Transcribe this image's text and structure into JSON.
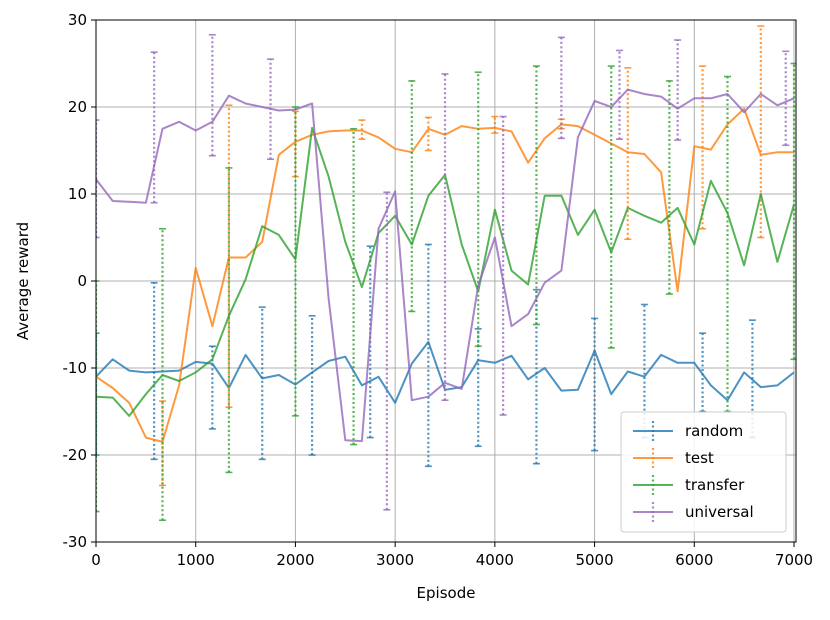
{
  "chart_data": {
    "type": "line",
    "xlabel": "Episode",
    "ylabel": "Average reward",
    "xlim": [
      0,
      7020
    ],
    "ylim": [
      -30,
      30
    ],
    "xticks": [
      0,
      1000,
      2000,
      3000,
      4000,
      5000,
      6000,
      7000
    ],
    "yticks": [
      -30,
      -20,
      -10,
      0,
      10,
      20,
      30
    ],
    "grid": true,
    "legend": "lower right",
    "x": [
      0,
      167,
      333,
      500,
      667,
      833,
      1000,
      1167,
      1333,
      1500,
      1667,
      1833,
      2000,
      2167,
      2333,
      2500,
      2667,
      2833,
      3000,
      3167,
      3333,
      3500,
      3667,
      3833,
      4000,
      4167,
      4333,
      4500,
      4667,
      4833,
      5000,
      5167,
      5333,
      5500,
      5667,
      5833,
      6000,
      6167,
      6333,
      6500,
      6667,
      6833,
      7000
    ],
    "series": [
      {
        "name": "random",
        "color": "#1f77b4",
        "values": [
          -11,
          -9,
          -10.3,
          -10.5,
          -10.4,
          -10.3,
          -9.3,
          -9.5,
          -12.3,
          -8.5,
          -11.2,
          -10.8,
          -11.9,
          -10.5,
          -9.2,
          -8.7,
          -12,
          -11,
          -14,
          -9.5,
          -7,
          -12.5,
          -12.2,
          -9.1,
          -9.4,
          -8.6,
          -11.3,
          -10,
          -12.6,
          -12.5,
          -8,
          -13,
          -10.4,
          -11,
          -8.5,
          -9.4,
          -9.4,
          -12,
          -13.7,
          -10.5,
          -12.2,
          -12,
          -10.5
        ],
        "error_bars": [
          {
            "x": 0,
            "low": -20,
            "high": -6
          },
          {
            "x": 583,
            "low": -20.5,
            "high": -0.2
          },
          {
            "x": 1167,
            "low": -17,
            "high": -7.5
          },
          {
            "x": 1667,
            "low": -20.5,
            "high": -3
          },
          {
            "x": 2167,
            "low": -20,
            "high": -4
          },
          {
            "x": 2750,
            "low": -18,
            "high": 4
          },
          {
            "x": 3333,
            "low": -21.3,
            "high": 4.2
          },
          {
            "x": 3833,
            "low": -19,
            "high": -5.5
          },
          {
            "x": 4417,
            "low": -21,
            "high": -1
          },
          {
            "x": 5000,
            "low": -19.5,
            "high": -4.3
          },
          {
            "x": 5500,
            "low": -18,
            "high": -2.7
          },
          {
            "x": 6083,
            "low": -15,
            "high": -6
          },
          {
            "x": 6583,
            "low": -18,
            "high": -4.5
          }
        ]
      },
      {
        "name": "test",
        "color": "#ff7f0e",
        "values": [
          -11,
          -12.3,
          -14,
          -18,
          -18.5,
          -12,
          1.5,
          -5.2,
          2.7,
          2.7,
          4.5,
          14.5,
          16,
          16.8,
          17.2,
          17.3,
          17.3,
          16.5,
          15.2,
          14.8,
          17.5,
          16.8,
          17.8,
          17.5,
          17.6,
          17.2,
          13.6,
          16.4,
          18,
          17.8,
          16.8,
          15.8,
          14.8,
          14.6,
          12.5,
          -1.2,
          15.5,
          15.1,
          18,
          19.8,
          14.5,
          14.8,
          14.8
        ],
        "error_bars": [
          {
            "x": 667,
            "low": -23.5,
            "high": -13.8
          },
          {
            "x": 1333,
            "low": -14.5,
            "high": 20.2
          },
          {
            "x": 2000,
            "low": 12,
            "high": 19.5
          },
          {
            "x": 2667,
            "low": 16.3,
            "high": 18.5
          },
          {
            "x": 3333,
            "low": 15,
            "high": 18.8
          },
          {
            "x": 4000,
            "low": 17,
            "high": 18.9
          },
          {
            "x": 4667,
            "low": 17.5,
            "high": 18.6
          },
          {
            "x": 5333,
            "low": 4.8,
            "high": 24.5
          },
          {
            "x": 6083,
            "low": 6,
            "high": 24.7
          },
          {
            "x": 6667,
            "low": 5,
            "high": 29.3
          }
        ]
      },
      {
        "name": "transfer",
        "color": "#2ca02c",
        "values": [
          -13.3,
          -13.4,
          -15.5,
          -13,
          -10.8,
          -11.5,
          -10.5,
          -9,
          -4,
          0.2,
          6.3,
          5.3,
          2.5,
          17.6,
          12,
          4.5,
          -0.7,
          5.5,
          7.5,
          4.2,
          9.8,
          12.2,
          4.2,
          -1.2,
          8.2,
          1.2,
          -0.4,
          9.8,
          9.8,
          5.3,
          8.2,
          3.3,
          8.4,
          7.5,
          6.7,
          8.4,
          4.2,
          11.5,
          7.8,
          1.8,
          10,
          2.2,
          8.8
        ],
        "error_bars": [
          {
            "x": 0,
            "low": -26.5,
            "high": 0
          },
          {
            "x": 667,
            "low": -27.5,
            "high": 6
          },
          {
            "x": 1333,
            "low": -22,
            "high": 13
          },
          {
            "x": 2000,
            "low": -15.5,
            "high": 20
          },
          {
            "x": 2583,
            "low": -18.8,
            "high": 17.5
          },
          {
            "x": 3167,
            "low": -3.5,
            "high": 23
          },
          {
            "x": 3833,
            "low": -7.5,
            "high": 24
          },
          {
            "x": 4417,
            "low": -5,
            "high": 24.7
          },
          {
            "x": 5167,
            "low": -7.7,
            "high": 24.7
          },
          {
            "x": 5750,
            "low": -1.5,
            "high": 23
          },
          {
            "x": 6333,
            "low": -15,
            "high": 23.5
          },
          {
            "x": 7000,
            "low": -9,
            "high": 25
          }
        ]
      },
      {
        "name": "universal",
        "color": "#9467bd",
        "values": [
          11.7,
          9.2,
          9.1,
          9,
          17.5,
          18.3,
          17.3,
          18.3,
          21.3,
          20.4,
          20,
          19.6,
          19.7,
          20.4,
          -2,
          -18.3,
          -18.4,
          6,
          10.3,
          -13.7,
          -13.3,
          -11.7,
          -12.4,
          -0.5,
          5,
          -5.2,
          -3.8,
          -0.2,
          1.2,
          16.5,
          20.7,
          20,
          22,
          21.5,
          21.2,
          19.8,
          21,
          21,
          21.5,
          19.4,
          21.5,
          20.2,
          21
        ],
        "error_bars": [
          {
            "x": 0,
            "low": 5,
            "high": 18.5
          },
          {
            "x": 583,
            "low": 9,
            "high": 26.3
          },
          {
            "x": 1167,
            "low": 14.4,
            "high": 28.3
          },
          {
            "x": 1750,
            "low": 14,
            "high": 25.5
          },
          {
            "x": 2917,
            "low": -26.3,
            "high": 10.2
          },
          {
            "x": 3500,
            "low": -13.7,
            "high": 23.8
          },
          {
            "x": 4083,
            "low": -15.4,
            "high": 18.9
          },
          {
            "x": 4667,
            "low": 16.4,
            "high": 28
          },
          {
            "x": 5250,
            "low": 16.3,
            "high": 26.5
          },
          {
            "x": 5833,
            "low": 16.2,
            "high": 27.7
          },
          {
            "x": 6917,
            "low": 15.6,
            "high": 26.4
          }
        ]
      }
    ]
  }
}
